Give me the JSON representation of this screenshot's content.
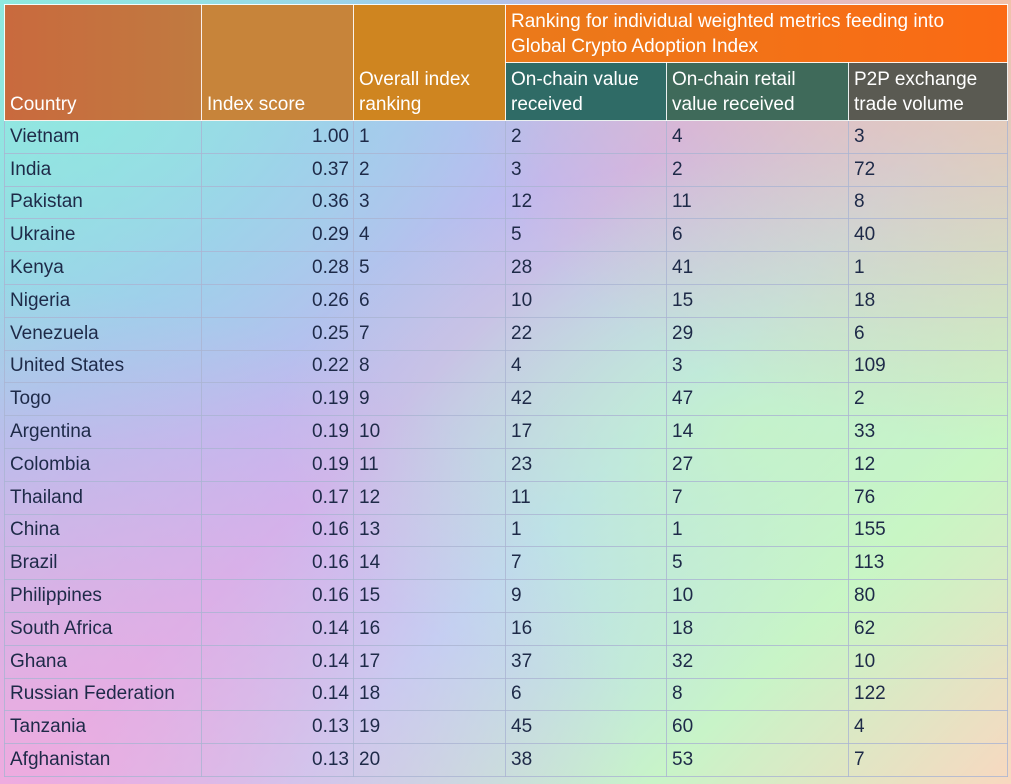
{
  "headers": {
    "country": "Country",
    "index_score": "Index score",
    "overall_ranking": "Overall index ranking",
    "group": "Ranking for individual weighted metrics feeding into Global Crypto Adoption Index",
    "onchain_value": "On-chain value received",
    "onchain_retail": "On-chain retail value received",
    "p2p": "P2P exchange trade volume"
  },
  "rows": [
    {
      "country": "Vietnam",
      "score": "1.00",
      "rank": "1",
      "onchain": "2",
      "retail": "4",
      "p2p": "3"
    },
    {
      "country": "India",
      "score": "0.37",
      "rank": "2",
      "onchain": "3",
      "retail": "2",
      "p2p": "72"
    },
    {
      "country": "Pakistan",
      "score": "0.36",
      "rank": "3",
      "onchain": "12",
      "retail": "11",
      "p2p": "8"
    },
    {
      "country": "Ukraine",
      "score": "0.29",
      "rank": "4",
      "onchain": "5",
      "retail": "6",
      "p2p": "40"
    },
    {
      "country": "Kenya",
      "score": "0.28",
      "rank": "5",
      "onchain": "28",
      "retail": "41",
      "p2p": "1"
    },
    {
      "country": "Nigeria",
      "score": "0.26",
      "rank": "6",
      "onchain": "10",
      "retail": "15",
      "p2p": "18"
    },
    {
      "country": "Venezuela",
      "score": "0.25",
      "rank": "7",
      "onchain": "22",
      "retail": "29",
      "p2p": "6"
    },
    {
      "country": "United States",
      "score": "0.22",
      "rank": "8",
      "onchain": "4",
      "retail": "3",
      "p2p": "109"
    },
    {
      "country": "Togo",
      "score": "0.19",
      "rank": "9",
      "onchain": "42",
      "retail": "47",
      "p2p": "2"
    },
    {
      "country": "Argentina",
      "score": "0.19",
      "rank": "10",
      "onchain": "17",
      "retail": "14",
      "p2p": "33"
    },
    {
      "country": "Colombia",
      "score": "0.19",
      "rank": "11",
      "onchain": "23",
      "retail": "27",
      "p2p": "12"
    },
    {
      "country": "Thailand",
      "score": "0.17",
      "rank": "12",
      "onchain": "11",
      "retail": "7",
      "p2p": "76"
    },
    {
      "country": "China",
      "score": "0.16",
      "rank": "13",
      "onchain": "1",
      "retail": "1",
      "p2p": "155"
    },
    {
      "country": "Brazil",
      "score": "0.16",
      "rank": "14",
      "onchain": "7",
      "retail": "5",
      "p2p": "113"
    },
    {
      "country": "Philippines",
      "score": "0.16",
      "rank": "15",
      "onchain": "9",
      "retail": "10",
      "p2p": "80"
    },
    {
      "country": "South Africa",
      "score": "0.14",
      "rank": "16",
      "onchain": "16",
      "retail": "18",
      "p2p": "62"
    },
    {
      "country": "Ghana",
      "score": "0.14",
      "rank": "17",
      "onchain": "37",
      "retail": "32",
      "p2p": "10"
    },
    {
      "country": "Russian Federation",
      "score": "0.14",
      "rank": "18",
      "onchain": "6",
      "retail": "8",
      "p2p": "122"
    },
    {
      "country": "Tanzania",
      "score": "0.13",
      "rank": "19",
      "onchain": "45",
      "retail": "60",
      "p2p": "4"
    },
    {
      "country": "Afghanistan",
      "score": "0.13",
      "rank": "20",
      "onchain": "38",
      "retail": "53",
      "p2p": "7"
    }
  ]
}
